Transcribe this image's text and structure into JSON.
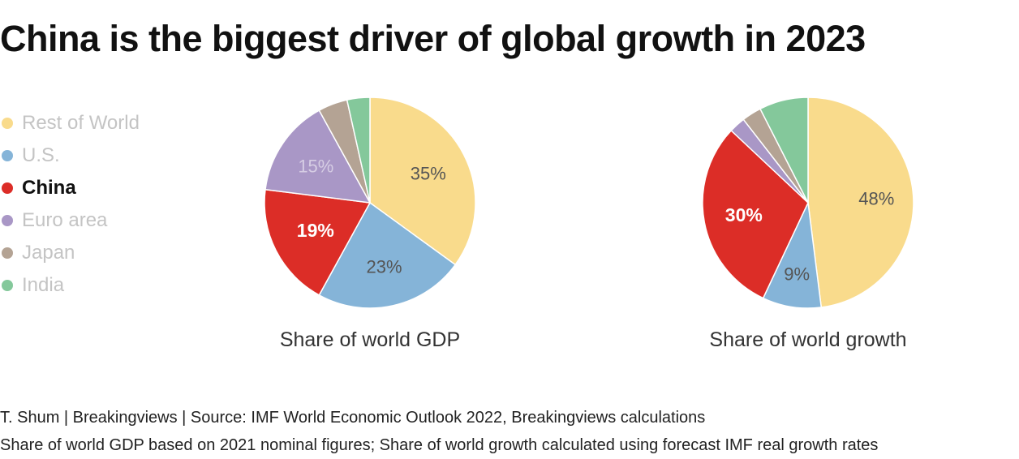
{
  "title": "China is the biggest driver of global growth in 2023",
  "legend": [
    {
      "label": "Rest of World",
      "color": "#f9db8c",
      "highlight": false
    },
    {
      "label": "U.S.",
      "color": "#85b4d8",
      "highlight": false
    },
    {
      "label": "China",
      "color": "#dc2d27",
      "highlight": true
    },
    {
      "label": "Euro area",
      "color": "#a997c6",
      "highlight": false
    },
    {
      "label": "Japan",
      "color": "#b4a394",
      "highlight": false
    },
    {
      "label": "India",
      "color": "#84c89b",
      "highlight": false
    }
  ],
  "chart_data": [
    {
      "type": "pie",
      "title": "Share of world GDP",
      "slices": [
        {
          "label": "Rest of World",
          "value": 35,
          "text": "35%"
        },
        {
          "label": "U.S.",
          "value": 23,
          "text": "23%"
        },
        {
          "label": "China",
          "value": 19,
          "text": "19%"
        },
        {
          "label": "Euro area",
          "value": 15,
          "text": "15%"
        },
        {
          "label": "Japan",
          "value": 4.5,
          "text": ""
        },
        {
          "label": "India",
          "value": 3.5,
          "text": ""
        }
      ]
    },
    {
      "type": "pie",
      "title": "Share of world growth",
      "slices": [
        {
          "label": "Rest of World",
          "value": 48,
          "text": "48%"
        },
        {
          "label": "U.S.",
          "value": 9,
          "text": "9%"
        },
        {
          "label": "China",
          "value": 30,
          "text": "30%"
        },
        {
          "label": "Euro area",
          "value": 2.5,
          "text": ""
        },
        {
          "label": "Japan",
          "value": 3,
          "text": ""
        },
        {
          "label": "India",
          "value": 7.5,
          "text": ""
        }
      ]
    }
  ],
  "footer": {
    "source": "T. Shum | Breakingviews | Source: IMF World Economic Outlook 2022, Breakingviews calculations",
    "note": "Share of world GDP based on 2021 nominal figures; Share of world growth calculated using forecast IMF real growth rates"
  }
}
